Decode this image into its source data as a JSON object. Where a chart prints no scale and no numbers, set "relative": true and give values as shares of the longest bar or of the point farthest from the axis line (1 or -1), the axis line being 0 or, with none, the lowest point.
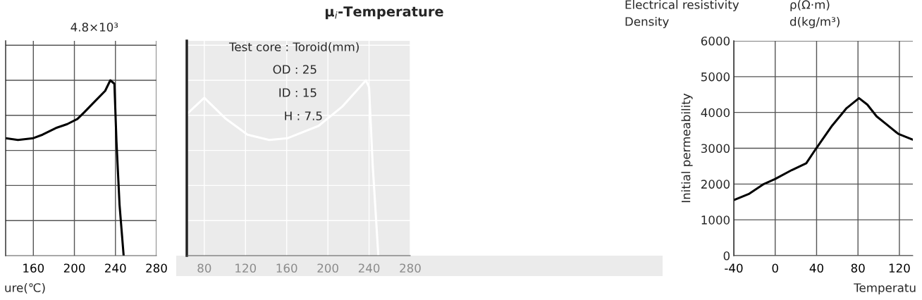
{
  "chart_data": [
    {
      "type": "line",
      "relative": true,
      "xlabel": "ure(℃)",
      "xlim": [
        133,
        280
      ],
      "xticks": [
        160,
        200,
        240,
        280
      ],
      "grid": true,
      "tick_labels": "x",
      "annotations": [
        "4.8×10³"
      ],
      "x": [
        133,
        145,
        160,
        169,
        183,
        193,
        203,
        210,
        220,
        230,
        235,
        239,
        241,
        244,
        248
      ],
      "series": [
        {
          "color": "#000000",
          "values": [
            0.67,
            0.66,
            0.67,
            0.69,
            0.73,
            0.75,
            0.78,
            0.82,
            0.88,
            0.94,
            1.0,
            0.98,
            0.65,
            0.29,
            0
          ]
        }
      ]
    },
    {
      "type": "line",
      "relative": true,
      "title": "μ$_{i}$-Temperature",
      "xlim": [
        63,
        280
      ],
      "xticks": [
        80,
        120,
        160,
        200,
        240,
        280
      ],
      "grid": true,
      "tick_labels": "x",
      "annotations": [
        "Test core : Toroid(mm)",
        "OD : 25",
        "ID : 15",
        "H : 7.5"
      ],
      "x": [
        63.5,
        80,
        101,
        122,
        143,
        161,
        191,
        214,
        237,
        240,
        243.5,
        249
      ],
      "series": [
        {
          "color": "#ffffff",
          "values": [
            0.81,
            0.9,
            0.78,
            0.69,
            0.66,
            0.67,
            0.74,
            0.85,
            1.0,
            0.96,
            0.52,
            0
          ]
        }
      ]
    },
    {
      "type": "line",
      "xlabel": "Temperatu",
      "ylabel": "Initial permeability",
      "xlim": [
        -40,
        133
      ],
      "xticks": [
        -40,
        0,
        40,
        80,
        120
      ],
      "ylim": [
        0,
        6000
      ],
      "yticks": [
        0,
        1000,
        2000,
        3000,
        4000,
        5000,
        6000
      ],
      "grid": true,
      "annotations": [
        "Electrical resistivity",
        "ρ(Ω·m)",
        "Density",
        "d(kg/m³)"
      ],
      "x": [
        -40,
        -25,
        -11,
        0,
        16,
        30,
        39,
        55,
        69,
        81,
        89,
        98,
        107,
        119,
        133
      ],
      "series": [
        {
          "color": "#000000",
          "values": [
            1550,
            1730,
            2000,
            2140,
            2390,
            2580,
            2970,
            3630,
            4120,
            4400,
            4220,
            3890,
            3680,
            3400,
            3240
          ]
        }
      ]
    }
  ]
}
